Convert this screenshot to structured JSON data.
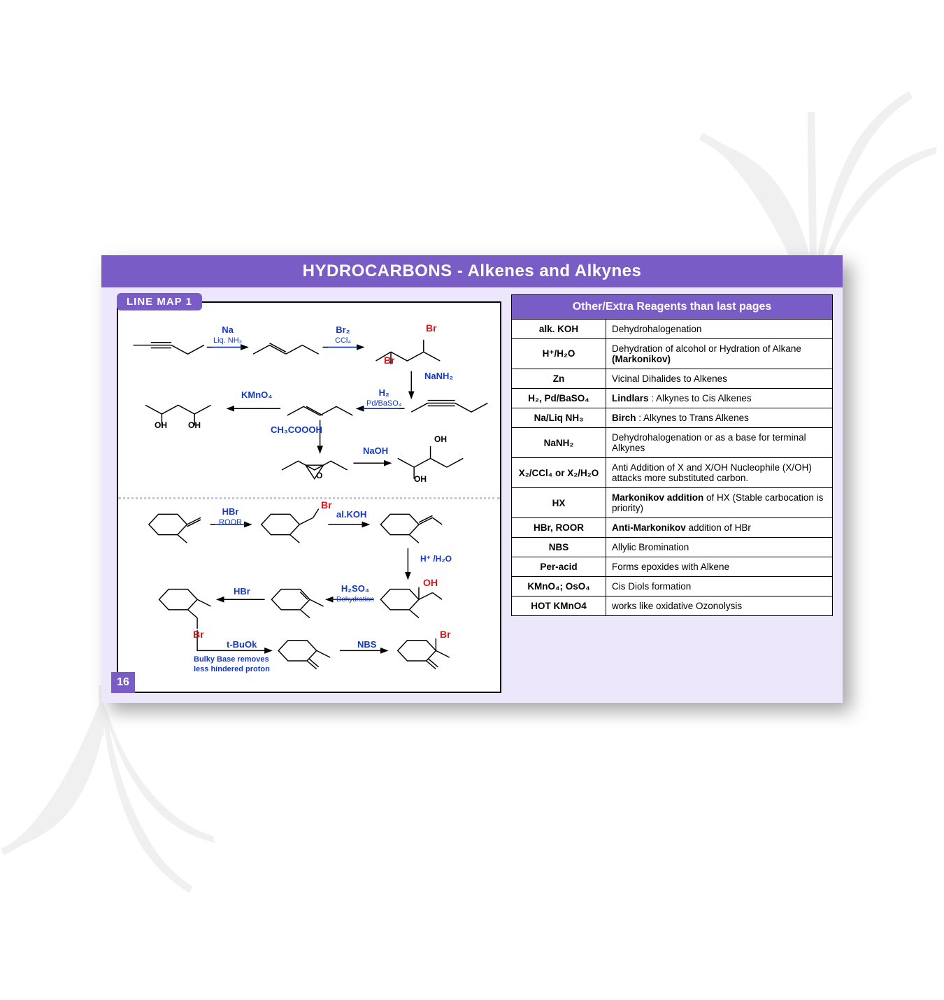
{
  "colors": {
    "accent": "#7a5cc7",
    "background_card": "#ece7fa",
    "reagent_blue": "#1338c2",
    "atom_red": "#d8161a",
    "border": "#000000",
    "white": "#ffffff",
    "leaf_shadow": "#888888"
  },
  "title": "HYDROCARBONS - Alkenes and Alkynes",
  "line_map_label": "LINE MAP 1",
  "page_number": "16",
  "diagram": {
    "top_section": {
      "reagents": [
        {
          "label": "Na",
          "sub": "Liq. NH₃"
        },
        {
          "label": "Br₂",
          "sub": "CCl₄"
        },
        {
          "label": "NaNH₂",
          "sub": ""
        },
        {
          "label": "KMnO₄",
          "sub": ""
        },
        {
          "label": "H₂",
          "sub": "Pd/BaSO₄"
        },
        {
          "label": "CH₃COOOH",
          "sub": ""
        },
        {
          "label": "NaOH",
          "sub": ""
        }
      ],
      "atoms": [
        "Br",
        "Br",
        "OH",
        "OH",
        "OH",
        "OH",
        "O"
      ]
    },
    "bottom_section": {
      "reagents": [
        {
          "label": "HBr",
          "sub": "ROOR"
        },
        {
          "label": "al.KOH",
          "sub": ""
        },
        {
          "label": "H⁺ /H₂O",
          "sub": ""
        },
        {
          "label": "HBr",
          "sub": ""
        },
        {
          "label": "H₂SO₄",
          "sub": "Dehydration"
        },
        {
          "label": "t-BuOk",
          "sub": ""
        },
        {
          "label": "NBS",
          "sub": ""
        }
      ],
      "atoms": [
        "Br",
        "OH",
        "Br",
        "Br"
      ],
      "note": "Bulky Base removes less hindered proton"
    }
  },
  "table": {
    "header": "Other/Extra Reagents than last pages",
    "rows": [
      {
        "reagent": "alk. KOH",
        "description": "Dehydrohalogenation"
      },
      {
        "reagent": "H⁺/H₂O",
        "description": "Dehydration of alcohol or Hydration of Alkane <b>(Markonikov)</b>"
      },
      {
        "reagent": "Zn",
        "description": "Vicinal Dihalides to Alkenes"
      },
      {
        "reagent": "H₂, Pd/BaSO₄",
        "description": "<b>Lindlars</b> : Alkynes to Cis Alkenes"
      },
      {
        "reagent": "Na/Liq NH₃",
        "description": "<b>Birch</b> : Alkynes to Trans Alkenes"
      },
      {
        "reagent": "NaNH₂",
        "description": "Dehydrohalogenation or as a base for terminal Alkynes"
      },
      {
        "reagent": "X₂/CCl₄ or X₂/H₂O",
        "description": "Anti Addition of X and X/OH Nucleophile (X/OH) attacks more substituted carbon."
      },
      {
        "reagent": "HX",
        "description": "<b>Markonikov addition</b> of HX (Stable carbocation is priority)"
      },
      {
        "reagent": "HBr, ROOR",
        "description": "<b>Anti-Markonikov</b> addition of HBr"
      },
      {
        "reagent": "NBS",
        "description": "Allylic Bromination"
      },
      {
        "reagent": "Per-acid",
        "description": "Forms epoxides with Alkene"
      },
      {
        "reagent": "KMnO₄; OsO₄",
        "description": "Cis Diols formation"
      },
      {
        "reagent": "HOT KMnO4",
        "description": "works like oxidative Ozonolysis"
      }
    ]
  }
}
